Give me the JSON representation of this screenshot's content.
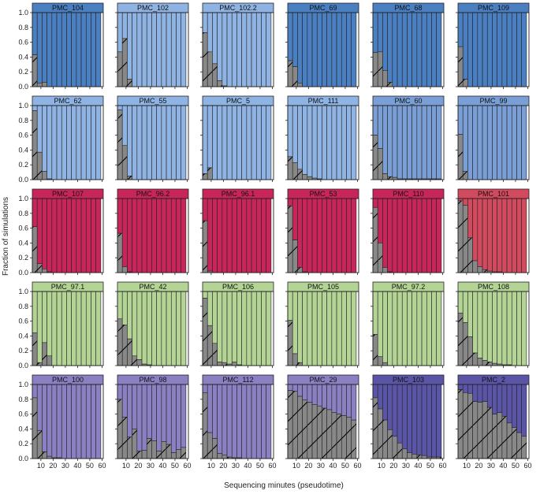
{
  "figure": {
    "ylabel": "Fraction of simulations",
    "xlabel": "Sequencing minutes (pseudotime)"
  },
  "axes": {
    "x_ticks": [
      "10",
      "20",
      "30",
      "40",
      "50",
      "60"
    ],
    "y_ticks": [
      "0.0",
      "0.2",
      "0.4",
      "0.6",
      "0.8",
      "1.0"
    ]
  },
  "colors": {
    "bar_grey": "#888888",
    "edge": "#222222",
    "hatch_line": "#000000",
    "row_palettes": [
      "#4a7fc1",
      "#8fb3e3",
      "#c8265a",
      "#b3d494",
      "#8a80c2"
    ]
  },
  "chart_data": {
    "type": "bar",
    "layout": "5x6 small multiples",
    "bins": 14,
    "bin_minutes": [
      5,
      9,
      13,
      17,
      21,
      25,
      29,
      33,
      37,
      41,
      45,
      49,
      53,
      57
    ],
    "xlim": [
      3,
      61
    ],
    "ylim": [
      0,
      1
    ],
    "stack": [
      "grey (remaining)",
      "colored (complete)"
    ],
    "panels": [
      {
        "name": "PMC_104",
        "color": "#4a7fc1",
        "values": [
          0.43,
          0.05,
          0.06,
          0,
          0,
          0,
          0,
          0,
          0,
          0,
          0,
          0,
          0,
          0
        ]
      },
      {
        "name": "PMC_102",
        "color": "#8fb3e3",
        "values": [
          0.47,
          0.65,
          0.1,
          0,
          0,
          0,
          0,
          0,
          0,
          0,
          0,
          0,
          0,
          0
        ]
      },
      {
        "name": "PMC_102.2",
        "color": "#8fb3e3",
        "values": [
          0.73,
          0.47,
          0.31,
          0.08,
          0.01,
          0,
          0,
          0,
          0,
          0,
          0,
          0,
          0,
          0
        ]
      },
      {
        "name": "PMC_69",
        "color": "#4a7fc1",
        "values": [
          0.35,
          0.27,
          0.05,
          0,
          0,
          0,
          0,
          0,
          0,
          0,
          0,
          0,
          0,
          0
        ]
      },
      {
        "name": "PMC_68",
        "color": "#4a7fc1",
        "values": [
          0.46,
          0.47,
          0.22,
          0.06,
          0,
          0,
          0,
          0,
          0,
          0,
          0,
          0,
          0,
          0
        ]
      },
      {
        "name": "PMC_109",
        "color": "#4a7fc1",
        "values": [
          0.54,
          0.1,
          0,
          0,
          0,
          0,
          0,
          0,
          0,
          0,
          0,
          0,
          0,
          0
        ]
      },
      {
        "name": "PMC_62",
        "color": "#8fb3e3",
        "values": [
          0.93,
          0.37,
          0.11,
          0.01,
          0,
          0,
          0,
          0,
          0,
          0,
          0,
          0,
          0,
          0
        ]
      },
      {
        "name": "PMC_55",
        "color": "#8fb3e3",
        "values": [
          0.94,
          0.46,
          0.05,
          0,
          0,
          0,
          0,
          0,
          0,
          0,
          0,
          0,
          0,
          0
        ]
      },
      {
        "name": "PMC_5",
        "color": "#8fb3e3",
        "values": [
          0.08,
          0.16,
          0,
          0,
          0,
          0,
          0,
          0,
          0,
          0,
          0,
          0,
          0,
          0
        ]
      },
      {
        "name": "PMC_111",
        "color": "#8fb3e3",
        "values": [
          0.31,
          0.23,
          0.14,
          0.07,
          0.04,
          0.02,
          0.01,
          0,
          0,
          0,
          0,
          0,
          0,
          0
        ]
      },
      {
        "name": "PMC_60",
        "color": "#7a9fd6",
        "values": [
          0.6,
          0.42,
          0.08,
          0.04,
          0.03,
          0.01,
          0.01,
          0.01,
          0.01,
          0.01,
          0.01,
          0.01,
          0.01,
          0.01
        ]
      },
      {
        "name": "PMC_99",
        "color": "#7a9fd6",
        "values": [
          0.61,
          0.11,
          0,
          0,
          0,
          0,
          0,
          0,
          0,
          0,
          0,
          0,
          0,
          0
        ]
      },
      {
        "name": "PMC_107",
        "color": "#c8265a",
        "values": [
          0.62,
          0.12,
          0.05,
          0.01,
          0,
          0,
          0,
          0,
          0,
          0,
          0,
          0,
          0,
          0
        ]
      },
      {
        "name": "PMC_96.2",
        "color": "#c8265a",
        "values": [
          0.53,
          0.08,
          0.01,
          0,
          0,
          0,
          0,
          0,
          0,
          0,
          0,
          0,
          0,
          0
        ]
      },
      {
        "name": "PMC_96.1",
        "color": "#c8265a",
        "values": [
          0.7,
          0.02,
          0,
          0,
          0,
          0,
          0,
          0,
          0,
          0,
          0,
          0,
          0,
          0
        ]
      },
      {
        "name": "PMC_53",
        "color": "#c8265a",
        "values": [
          0.9,
          0.44,
          0.07,
          0.01,
          0,
          0,
          0,
          0,
          0,
          0,
          0,
          0,
          0,
          0
        ]
      },
      {
        "name": "PMC_110",
        "color": "#c8265a",
        "values": [
          0.88,
          0.4,
          0.07,
          0.01,
          0,
          0,
          0,
          0,
          0,
          0,
          0,
          0,
          0,
          0
        ]
      },
      {
        "name": "PMC_101",
        "color": "#d24a5e",
        "values": [
          0.97,
          0.91,
          0.47,
          0.16,
          0.08,
          0.04,
          0.02,
          0.01,
          0.01,
          0,
          0,
          0,
          0,
          0
        ]
      },
      {
        "name": "PMC_97.1",
        "color": "#b3d494",
        "values": [
          0.44,
          0.04,
          0.31,
          0.13,
          0,
          0,
          0,
          0,
          0,
          0,
          0,
          0,
          0,
          0
        ]
      },
      {
        "name": "PMC_42",
        "color": "#b3d494",
        "values": [
          0.63,
          0.55,
          0.36,
          0.13,
          0.08,
          0.02,
          0.01,
          0,
          0,
          0,
          0,
          0,
          0,
          0
        ]
      },
      {
        "name": "PMC_106",
        "color": "#b3d494",
        "values": [
          0.91,
          0.54,
          0.3,
          0.05,
          0.04,
          0.02,
          0.05,
          0.01,
          0,
          0,
          0,
          0,
          0,
          0
        ]
      },
      {
        "name": "PMC_105",
        "color": "#b3d494",
        "values": [
          0.61,
          0.16,
          0.04,
          0,
          0,
          0,
          0,
          0,
          0,
          0,
          0,
          0,
          0,
          0
        ]
      },
      {
        "name": "PMC_97.2",
        "color": "#b3d494",
        "values": [
          0.42,
          0.12,
          0.04,
          0,
          0,
          0,
          0,
          0,
          0,
          0,
          0,
          0,
          0,
          0
        ]
      },
      {
        "name": "PMC_108",
        "color": "#b3d494",
        "values": [
          0.71,
          0.58,
          0.39,
          0.17,
          0.1,
          0.07,
          0.05,
          0.03,
          0.02,
          0.01,
          0.01,
          0,
          0,
          0
        ]
      },
      {
        "name": "PMC_100",
        "color": "#8a80c2",
        "values": [
          0.82,
          0.38,
          0.09,
          0.03,
          0.01,
          0.01,
          0,
          0,
          0,
          0,
          0,
          0,
          0,
          0
        ]
      },
      {
        "name": "PMC_98",
        "color": "#8a80c2",
        "values": [
          0.8,
          0.56,
          0.29,
          0.4,
          0.1,
          0.11,
          0.27,
          0.24,
          0.1,
          0.23,
          0.19,
          0.08,
          0.12,
          0.15
        ]
      },
      {
        "name": "PMC_112",
        "color": "#8a80c2",
        "values": [
          0.89,
          0.35,
          0.27,
          0.07,
          0.05,
          0.02,
          0.01,
          0.01,
          0,
          0,
          0,
          0,
          0,
          0
        ]
      },
      {
        "name": "PMC_29",
        "color": "#8a80c2",
        "values": [
          0.92,
          0.91,
          0.84,
          0.79,
          0.76,
          0.73,
          0.71,
          0.68,
          0.66,
          0.62,
          0.6,
          0.58,
          0.56,
          0.52
        ]
      },
      {
        "name": "PMC_103",
        "color": "#5b55a8",
        "values": [
          0.82,
          0.67,
          0.52,
          0.39,
          0.3,
          0.21,
          0.13,
          0.08,
          0.06,
          0.05,
          0.04,
          0.02,
          0.02,
          0.02
        ]
      },
      {
        "name": "PMC_2",
        "color": "#5b55a8",
        "values": [
          0.93,
          0.89,
          0.88,
          0.77,
          0.76,
          0.77,
          0.69,
          0.6,
          0.62,
          0.57,
          0.48,
          0.42,
          0.35,
          0.3
        ]
      }
    ]
  }
}
